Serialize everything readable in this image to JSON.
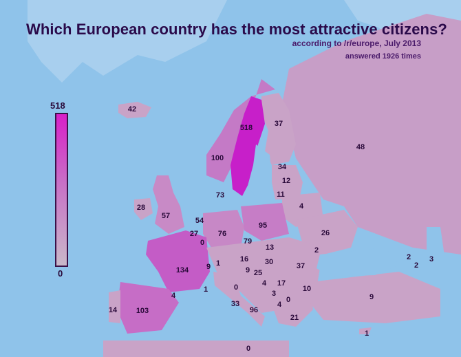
{
  "title": "Which European country has the most attractive citizens?",
  "subtitle": "according to /r/europe, July 2013",
  "responses": "answered 1926 times",
  "scale": {
    "max": "518",
    "min": "0",
    "max_color": "#d81fc8",
    "min_color": "#c9b8c9"
  },
  "colors": {
    "sea": "#8fc3ea",
    "land_low": "#c9a3c7",
    "land_mid": "#c874c6",
    "land_high": "#c71fc9",
    "outside": "#b8bfd8",
    "label": "#2a0a3a"
  },
  "values": [
    {
      "country": "Sweden",
      "value": "518"
    },
    {
      "country": "Norway",
      "value": "100"
    },
    {
      "country": "Finland",
      "value": "37"
    },
    {
      "country": "Russia",
      "value": "48"
    },
    {
      "country": "Iceland",
      "value": "42"
    },
    {
      "country": "Estonia",
      "value": "34"
    },
    {
      "country": "Latvia",
      "value": "12"
    },
    {
      "country": "Lithuania",
      "value": "11"
    },
    {
      "country": "Belarus",
      "value": "4"
    },
    {
      "country": "Denmark",
      "value": "73"
    },
    {
      "country": "Ireland",
      "value": "28"
    },
    {
      "country": "United Kingdom",
      "value": "57"
    },
    {
      "country": "Netherlands",
      "value": "54"
    },
    {
      "country": "Belgium",
      "value": "27"
    },
    {
      "country": "Luxembourg",
      "value": "0"
    },
    {
      "country": "Germany",
      "value": "76"
    },
    {
      "country": "Poland",
      "value": "95"
    },
    {
      "country": "Ukraine",
      "value": "26"
    },
    {
      "country": "Czech Republic",
      "value": "79"
    },
    {
      "country": "Slovakia",
      "value": "13"
    },
    {
      "country": "Moldova",
      "value": "2"
    },
    {
      "country": "Austria",
      "value": "16"
    },
    {
      "country": "Hungary",
      "value": "30"
    },
    {
      "country": "Romania",
      "value": "37"
    },
    {
      "country": "Switzerland",
      "value": "9"
    },
    {
      "country": "Liechtenstein",
      "value": "1"
    },
    {
      "country": "Slovenia",
      "value": "9"
    },
    {
      "country": "Croatia",
      "value": "25"
    },
    {
      "country": "Bosnia",
      "value": "4"
    },
    {
      "country": "Serbia",
      "value": "17"
    },
    {
      "country": "Montenegro",
      "value": "3"
    },
    {
      "country": "Kosovo",
      "value": "0"
    },
    {
      "country": "Macedonia",
      "value": "4"
    },
    {
      "country": "Bulgaria",
      "value": "10"
    },
    {
      "country": "Albania",
      "value": "0"
    },
    {
      "country": "Greece",
      "value": "21"
    },
    {
      "country": "Turkey",
      "value": "9"
    },
    {
      "country": "Cyprus",
      "value": "1"
    },
    {
      "country": "Malta",
      "value": "0"
    },
    {
      "country": "France",
      "value": "134"
    },
    {
      "country": "Monaco",
      "value": "1"
    },
    {
      "country": "Andorra",
      "value": "4"
    },
    {
      "country": "Spain",
      "value": "103"
    },
    {
      "country": "Portugal",
      "value": "14"
    },
    {
      "country": "Italy",
      "value": "33"
    },
    {
      "country": "San Marino",
      "value": "0"
    },
    {
      "country": "Vatican",
      "value": "96"
    },
    {
      "country": "Georgia",
      "value": "2"
    },
    {
      "country": "Armenia",
      "value": "2"
    },
    {
      "country": "Azerbaijan",
      "value": "3"
    }
  ]
}
